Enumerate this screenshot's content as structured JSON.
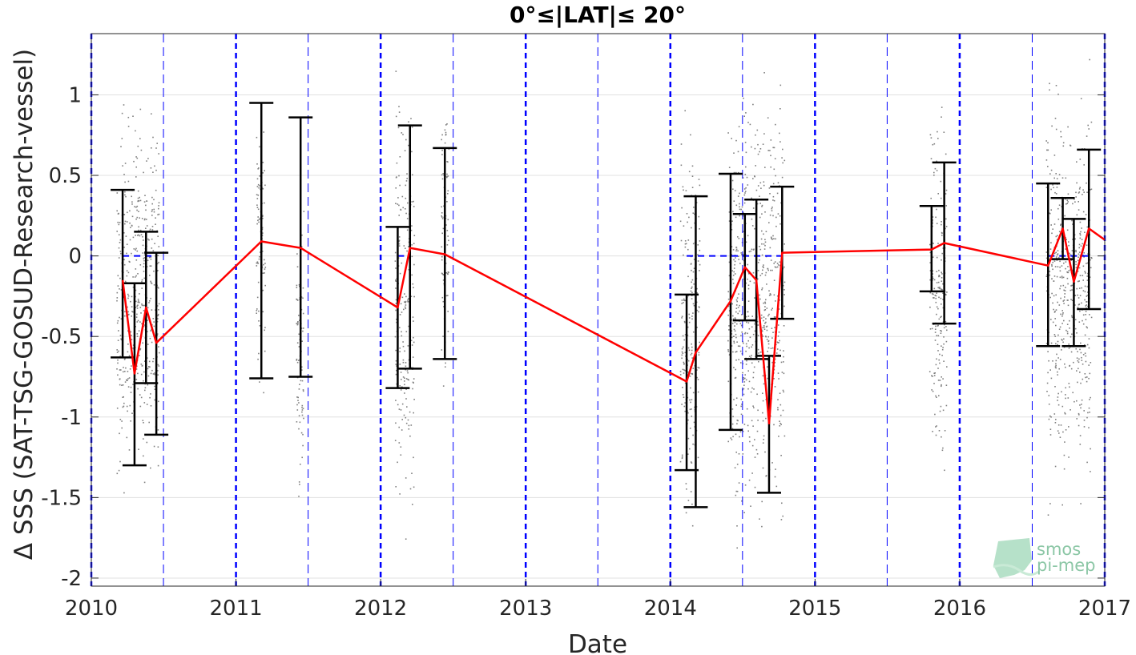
{
  "chart_data": {
    "type": "line",
    "title": "0°≤|LAT|≤ 20°",
    "xlabel": "Date",
    "ylabel": "Δ SSS (SAT-TSG-GOSUD-Research-vessel)",
    "xlim": [
      "2010-01-01",
      "2017-01-01"
    ],
    "ylim": [
      -2.05,
      1.38
    ],
    "x_ticks": [
      "2010",
      "2011",
      "2012",
      "2013",
      "2014",
      "2015",
      "2016",
      "2017"
    ],
    "y_ticks": [
      1,
      0.5,
      0,
      -0.5,
      -1,
      -1.5,
      -2
    ],
    "y_tick_labels": [
      "1",
      "0.5",
      "0",
      "-0.5",
      "-1",
      "-1.5",
      "-2"
    ],
    "grid": true,
    "colors": {
      "mean_line": "#ff0000",
      "error_bar": "#000000",
      "scatter": "#808080",
      "year_line": "#0000ff",
      "zero_line": "#0000ff"
    },
    "series": [
      {
        "type": "line-errorbar",
        "points": [
          {
            "x": "2010-03-21",
            "y": -0.15,
            "lo": -0.63,
            "hi": 0.41
          },
          {
            "x": "2010-04-20",
            "y": -0.73,
            "lo": -1.3,
            "hi": -0.17
          },
          {
            "x": "2010-05-19",
            "y": -0.32,
            "lo": -0.79,
            "hi": 0.15
          },
          {
            "x": "2010-06-14",
            "y": -0.54,
            "lo": -1.11,
            "hi": 0.02
          },
          {
            "x": "2011-03-06",
            "y": 0.09,
            "lo": -0.76,
            "hi": 0.95
          },
          {
            "x": "2011-06-13",
            "y": 0.05,
            "lo": -0.75,
            "hi": 0.86
          },
          {
            "x": "2012-02-13",
            "y": -0.32,
            "lo": -0.82,
            "hi": 0.18
          },
          {
            "x": "2012-03-15",
            "y": 0.05,
            "lo": -0.7,
            "hi": 0.81
          },
          {
            "x": "2012-06-11",
            "y": 0.01,
            "lo": -0.64,
            "hi": 0.67
          },
          {
            "x": "2014-02-11",
            "y": -0.78,
            "lo": -1.33,
            "hi": -0.24
          },
          {
            "x": "2014-03-06",
            "y": -0.6,
            "lo": -1.56,
            "hi": 0.37
          },
          {
            "x": "2014-06-02",
            "y": -0.28,
            "lo": -1.08,
            "hi": 0.51
          },
          {
            "x": "2014-07-08",
            "y": -0.07,
            "lo": -0.4,
            "hi": 0.26
          },
          {
            "x": "2014-08-06",
            "y": -0.15,
            "lo": -0.64,
            "hi": 0.35
          },
          {
            "x": "2014-09-07",
            "y": -1.04,
            "lo": -1.47,
            "hi": -0.62
          },
          {
            "x": "2014-10-10",
            "y": 0.02,
            "lo": -0.39,
            "hi": 0.43
          },
          {
            "x": "2015-10-22",
            "y": 0.04,
            "lo": -0.22,
            "hi": 0.31
          },
          {
            "x": "2015-11-23",
            "y": 0.08,
            "lo": -0.42,
            "hi": 0.58
          },
          {
            "x": "2016-08-11",
            "y": -0.06,
            "lo": -0.56,
            "hi": 0.45
          },
          {
            "x": "2016-09-17",
            "y": 0.17,
            "lo": -0.02,
            "hi": 0.36
          },
          {
            "x": "2016-10-15",
            "y": -0.16,
            "lo": -0.56,
            "hi": 0.23
          },
          {
            "x": "2016-11-22",
            "y": 0.17,
            "lo": -0.33,
            "hi": 0.66
          },
          {
            "x": "2017-01-01",
            "y": 0.1
          }
        ]
      }
    ],
    "scatter_bands": [
      {
        "from": "2010-03-05",
        "to": "2010-06-20",
        "lo": -1.6,
        "hi": 1.25
      },
      {
        "from": "2011-02-20",
        "to": "2011-03-15",
        "lo": -1.3,
        "hi": 1.3
      },
      {
        "from": "2011-06-01",
        "to": "2011-06-20",
        "lo": -1.65,
        "hi": 0.4
      },
      {
        "from": "2012-02-05",
        "to": "2012-03-25",
        "lo": -2.0,
        "hi": 1.35
      },
      {
        "from": "2012-06-01",
        "to": "2012-06-20",
        "lo": -1.0,
        "hi": 1.35
      },
      {
        "from": "2014-01-25",
        "to": "2014-03-15",
        "lo": -1.9,
        "hi": 1.1
      },
      {
        "from": "2014-05-25",
        "to": "2014-10-15",
        "lo": -2.0,
        "hi": 1.35
      },
      {
        "from": "2015-10-15",
        "to": "2015-11-28",
        "lo": -1.7,
        "hi": 1.25
      },
      {
        "from": "2016-08-05",
        "to": "2016-11-28",
        "lo": -1.7,
        "hi": 1.35
      }
    ],
    "zero_line_segments": [
      {
        "from": "2010-03-21",
        "to": "2010-06-14"
      },
      {
        "from": "2012-02-13",
        "to": "2012-03-15"
      },
      {
        "from": "2014-02-11",
        "to": "2014-10-10"
      },
      {
        "from": "2016-08-11",
        "to": "2016-11-22"
      }
    ],
    "year_lines": [
      "2010",
      "2011",
      "2012",
      "2013",
      "2014",
      "2015",
      "2016",
      "2017"
    ],
    "half_year_lines": [
      "2010-07-02",
      "2011-07-02",
      "2012-07-02",
      "2013-07-02",
      "2014-07-02",
      "2015-07-02",
      "2016-07-02"
    ]
  },
  "logo": {
    "line1": "smos",
    "line2": "pi-mep"
  }
}
